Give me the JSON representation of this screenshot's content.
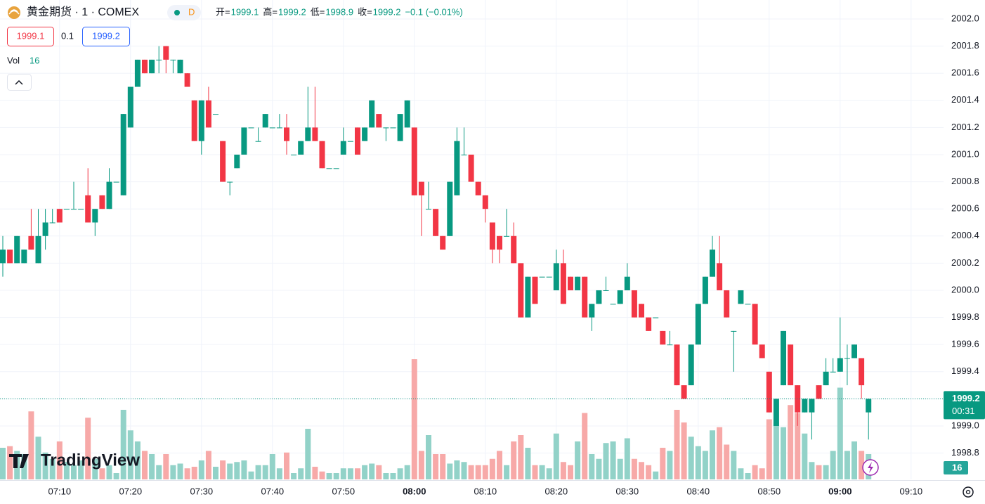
{
  "header": {
    "symbol": "黄金期货 · 1 · COMEX",
    "interval_badge": "D",
    "ohlc": [
      {
        "label": "开=",
        "value": "1999.1"
      },
      {
        "label": "高=",
        "value": "1999.2"
      },
      {
        "label": "低=",
        "value": "1998.9"
      },
      {
        "label": "收=",
        "value": "1999.2"
      }
    ],
    "change": "−0.1 (−0.01%)",
    "bid": "1999.1",
    "spread": "0.1",
    "ask": "1999.2",
    "vol_label": "Vol",
    "vol_value": "16"
  },
  "logo": "TradingView",
  "chart_data": {
    "type": "candlestick",
    "up_color": "#089981",
    "down_color": "#f23645",
    "up_volume_color": "#92d2c8",
    "down_volume_color": "#f7a9a8",
    "grid": true,
    "ylim": [
      1998.606,
      2002.14
    ],
    "vol_ylim": [
      0,
      100
    ],
    "yticks": [
      {
        "value": 2002.0,
        "label": "2002.0"
      },
      2001.8,
      2001.6,
      2001.4,
      2001.2,
      {
        "value": 2001.0,
        "label": "2001.0"
      },
      2000.8,
      2000.6,
      2000.4,
      2000.2,
      {
        "value": 2000.0,
        "label": "2000.0"
      },
      1999.8,
      1999.6,
      1999.4,
      1999.2,
      {
        "value": 1999.0,
        "label": "1999.0"
      },
      1998.8
    ],
    "xticks": [
      "07:10",
      "07:20",
      "07:30",
      "07:40",
      "07:50",
      "08:00",
      "08:10",
      "08:20",
      "08:30",
      "08:40",
      "08:50",
      "09:00",
      "09:10"
    ],
    "ohlc": [
      [
        2000.2,
        2000.4,
        2000.1,
        2000.3
      ],
      [
        2000.3,
        2000.3,
        2000.2,
        2000.2
      ],
      [
        2000.2,
        2000.4,
        2000.2,
        2000.4
      ],
      [
        2000.2,
        2000.3,
        2000.2,
        2000.3
      ],
      [
        2000.4,
        2000.6,
        2000.3,
        2000.3
      ],
      [
        2000.2,
        2000.6,
        2000.2,
        2000.4
      ],
      [
        2000.4,
        2000.6,
        2000.3,
        2000.5
      ],
      [
        2000.5,
        2000.6,
        2000.5,
        2000.5
      ],
      [
        2000.6,
        2000.6,
        2000.5,
        2000.5
      ],
      [
        2000.6,
        2000.6,
        2000.6,
        2000.6
      ],
      [
        2000.6,
        2000.8,
        2000.6,
        2000.6
      ],
      [
        2000.6,
        2000.6,
        2000.6,
        2000.6
      ],
      [
        2000.7,
        2000.9,
        2000.5,
        2000.5
      ],
      [
        2000.5,
        2000.6,
        2000.4,
        2000.6
      ],
      [
        2000.7,
        2000.7,
        2000.6,
        2000.6
      ],
      [
        2000.6,
        2000.9,
        2000.6,
        2000.8
      ],
      [
        2000.8,
        2000.8,
        2000.8,
        2000.8
      ],
      [
        2000.7,
        2001.3,
        2000.7,
        2001.3
      ],
      [
        2001.2,
        2001.5,
        2001.2,
        2001.5
      ],
      [
        2001.5,
        2001.7,
        2001.5,
        2001.7
      ],
      [
        2001.7,
        2001.7,
        2001.6,
        2001.6
      ],
      [
        2001.6,
        2001.7,
        2001.6,
        2001.7
      ],
      [
        2001.7,
        2001.8,
        2001.6,
        2001.7
      ],
      [
        2001.8,
        2001.8,
        2001.6,
        2001.7
      ],
      [
        2001.7,
        2001.7,
        2001.6,
        2001.7
      ],
      [
        2001.6,
        2001.7,
        2001.6,
        2001.7
      ],
      [
        2001.6,
        2001.6,
        2001.5,
        2001.5
      ],
      [
        2001.4,
        2001.4,
        2001.1,
        2001.1
      ],
      [
        2001.1,
        2001.4,
        2001.0,
        2001.4
      ],
      [
        2001.4,
        2001.5,
        2001.2,
        2001.2
      ],
      [
        2001.3,
        2001.3,
        2001.3,
        2001.3
      ],
      [
        2001.1,
        2001.1,
        2000.8,
        2000.8
      ],
      [
        2000.8,
        2000.8,
        2000.7,
        2000.8
      ],
      [
        2000.9,
        2001.0,
        2000.9,
        2001.0
      ],
      [
        2001.0,
        2001.2,
        2001.0,
        2001.2
      ],
      [
        2001.2,
        2001.2,
        2001.2,
        2001.2
      ],
      [
        2001.1,
        2001.2,
        2001.1,
        2001.1
      ],
      [
        2001.2,
        2001.3,
        2001.2,
        2001.3
      ],
      [
        2001.2,
        2001.2,
        2001.2,
        2001.2
      ],
      [
        2001.2,
        2001.3,
        2001.2,
        2001.2
      ],
      [
        2001.2,
        2001.3,
        2001.0,
        2001.1
      ],
      [
        2001.0,
        2001.0,
        2001.0,
        2001.0
      ],
      [
        2001.0,
        2001.1,
        2001.0,
        2001.1
      ],
      [
        2001.1,
        2001.5,
        2001.1,
        2001.2
      ],
      [
        2001.2,
        2001.5,
        2001.1,
        2001.1
      ],
      [
        2001.1,
        2001.1,
        2000.9,
        2000.9
      ],
      [
        2000.9,
        2000.9,
        2000.9,
        2000.9
      ],
      [
        2000.9,
        2000.9,
        2000.9,
        2000.9
      ],
      [
        2001.0,
        2001.2,
        2001.0,
        2001.1
      ],
      [
        2001.1,
        2001.1,
        2001.1,
        2001.1
      ],
      [
        2001.2,
        2001.2,
        2001.0,
        2001.0
      ],
      [
        2001.1,
        2001.2,
        2001.1,
        2001.2
      ],
      [
        2001.2,
        2001.4,
        2001.2,
        2001.4
      ],
      [
        2001.3,
        2001.3,
        2001.2,
        2001.2
      ],
      [
        2001.2,
        2001.2,
        2001.1,
        2001.2
      ],
      [
        2001.2,
        2001.2,
        2001.2,
        2001.2
      ],
      [
        2001.1,
        2001.3,
        2001.1,
        2001.3
      ],
      [
        2001.2,
        2001.4,
        2001.2,
        2001.4
      ],
      [
        2001.2,
        2001.2,
        2000.7,
        2000.7
      ],
      [
        2000.8,
        2000.8,
        2000.4,
        2000.7
      ],
      [
        2000.6,
        2000.8,
        2000.6,
        2000.6
      ],
      [
        2000.6,
        2000.6,
        2000.4,
        2000.4
      ],
      [
        2000.4,
        2000.4,
        2000.3,
        2000.3
      ],
      [
        2000.4,
        2000.8,
        2000.4,
        2000.8
      ],
      [
        2000.7,
        2001.2,
        2000.7,
        2001.1
      ],
      [
        2001.0,
        2001.2,
        2001.0,
        2001.0
      ],
      [
        2001.0,
        2001.0,
        2000.8,
        2000.8
      ],
      [
        2000.8,
        2000.8,
        2000.7,
        2000.7
      ],
      [
        2000.7,
        2000.7,
        2000.5,
        2000.6
      ],
      [
        2000.5,
        2000.5,
        2000.2,
        2000.3
      ],
      [
        2000.4,
        2000.4,
        2000.2,
        2000.3
      ],
      [
        2000.4,
        2000.6,
        2000.4,
        2000.4
      ],
      [
        2000.4,
        2000.5,
        2000.2,
        2000.2
      ],
      [
        2000.2,
        2000.2,
        1999.8,
        1999.8
      ],
      [
        1999.8,
        2000.1,
        1999.8,
        2000.1
      ],
      [
        2000.1,
        2000.1,
        1999.9,
        1999.9
      ],
      [
        2000.1,
        2000.1,
        2000.1,
        2000.1
      ],
      [
        2000.1,
        2000.1,
        2000.1,
        2000.1
      ],
      [
        2000.0,
        2000.3,
        2000.0,
        2000.2
      ],
      [
        2000.2,
        2000.3,
        1999.9,
        1999.9
      ],
      [
        2000.1,
        2000.1,
        2000.0,
        2000.0
      ],
      [
        2000.0,
        2000.1,
        2000.0,
        2000.1
      ],
      [
        2000.1,
        2000.1,
        1999.8,
        1999.8
      ],
      [
        1999.8,
        1999.9,
        1999.7,
        1999.9
      ],
      [
        1999.9,
        2000.0,
        1999.9,
        2000.0
      ],
      [
        2000.0,
        2000.1,
        2000.0,
        2000.0
      ],
      [
        1999.9,
        1999.9,
        1999.9,
        1999.9
      ],
      [
        1999.9,
        2000.0,
        1999.9,
        2000.0
      ],
      [
        2000.0,
        2000.2,
        2000.0,
        2000.1
      ],
      [
        2000.0,
        2000.0,
        1999.8,
        1999.8
      ],
      [
        1999.9,
        1999.9,
        1999.8,
        1999.8
      ],
      [
        1999.8,
        1999.8,
        1999.7,
        1999.7
      ],
      [
        1999.8,
        1999.8,
        1999.8,
        1999.8
      ],
      [
        1999.7,
        1999.7,
        1999.6,
        1999.6
      ],
      [
        1999.6,
        1999.7,
        1999.6,
        1999.6
      ],
      [
        1999.6,
        1999.6,
        1999.3,
        1999.3
      ],
      [
        1999.3,
        1999.3,
        1999.2,
        1999.2
      ],
      [
        1999.3,
        1999.6,
        1999.3,
        1999.6
      ],
      [
        1999.6,
        1999.9,
        1999.6,
        1999.9
      ],
      [
        1999.9,
        2000.1,
        1999.9,
        2000.1
      ],
      [
        2000.1,
        2000.4,
        2000.1,
        2000.3
      ],
      [
        2000.2,
        2000.4,
        2000.0,
        2000.0
      ],
      [
        2000.0,
        2000.0,
        1999.8,
        1999.8
      ],
      [
        1999.7,
        1999.7,
        1999.4,
        1999.7
      ],
      [
        1999.9,
        2000.0,
        1999.9,
        2000.0
      ],
      [
        1999.9,
        1999.9,
        1999.9,
        1999.9
      ],
      [
        1999.9,
        1999.9,
        1999.6,
        1999.6
      ],
      [
        1999.6,
        1999.6,
        1999.5,
        1999.5
      ],
      [
        1999.4,
        1999.4,
        1999.1,
        1999.1
      ],
      [
        1999.0,
        1999.2,
        1999.0,
        1999.2
      ],
      [
        1999.3,
        1999.7,
        1999.3,
        1999.7
      ],
      [
        1999.6,
        1999.6,
        1999.3,
        1999.3
      ],
      [
        1999.3,
        1999.3,
        1999.0,
        1999.1
      ],
      [
        1999.1,
        1999.2,
        1999.1,
        1999.2
      ],
      [
        1999.1,
        1999.2,
        1998.9,
        1999.2
      ],
      [
        1999.3,
        1999.3,
        1999.2,
        1999.2
      ],
      [
        1999.3,
        1999.5,
        1999.3,
        1999.4
      ],
      [
        1999.4,
        1999.5,
        1999.4,
        1999.4
      ],
      [
        1999.4,
        1999.8,
        1999.4,
        1999.5
      ],
      [
        1999.5,
        1999.6,
        1999.3,
        1999.5
      ],
      [
        1999.5,
        1999.6,
        1999.5,
        1999.6
      ],
      [
        1999.5,
        1999.5,
        1999.2,
        1999.3
      ],
      [
        1999.1,
        1999.2,
        1998.9,
        1999.2
      ]
    ],
    "volume": [
      20,
      21,
      18,
      16,
      43,
      27,
      17,
      13,
      24,
      11,
      9,
      12,
      39,
      13,
      7,
      9,
      4,
      44,
      31,
      24,
      18,
      16,
      9,
      16,
      9,
      10,
      7,
      8,
      12,
      18,
      8,
      12,
      10,
      11,
      12,
      5,
      9,
      9,
      16,
      7,
      17,
      4,
      7,
      32,
      8,
      5,
      4,
      4,
      7,
      7,
      7,
      9,
      10,
      9,
      4,
      4,
      7,
      9,
      76,
      18,
      28,
      16,
      16,
      10,
      12,
      11,
      9,
      9,
      9,
      13,
      18,
      9,
      24,
      28,
      20,
      9,
      9,
      7,
      29,
      11,
      9,
      24,
      42,
      16,
      13,
      23,
      24,
      13,
      26,
      13,
      11,
      9,
      5,
      20,
      18,
      44,
      36,
      27,
      21,
      18,
      31,
      33,
      22,
      18,
      7,
      4,
      9,
      7,
      38,
      36,
      33,
      47,
      42,
      29,
      11,
      9,
      9,
      18,
      58,
      18,
      24,
      18,
      16
    ],
    "price_tag": {
      "price": "1999.2",
      "countdown": "00:31"
    },
    "volume_tag": "16"
  }
}
